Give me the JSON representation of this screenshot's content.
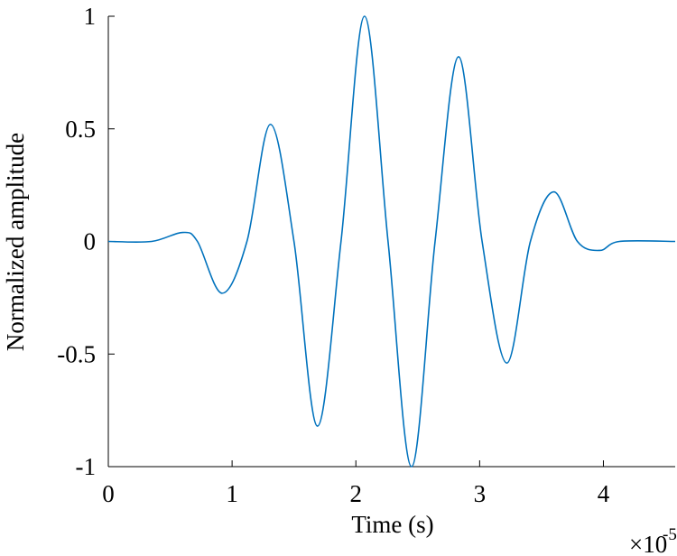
{
  "chart_data": {
    "type": "line",
    "x_label": "Time (s)",
    "y_label": "Normalized amplitude",
    "x_scale_label": {
      "base": "×10",
      "exponent": "-5"
    },
    "x": [
      0,
      0.35,
      0.6,
      0.72,
      0.92,
      1.12,
      1.31,
      1.5,
      1.69,
      1.88,
      2.07,
      2.26,
      2.45,
      2.64,
      2.83,
      3.02,
      3.22,
      3.41,
      3.6,
      3.79,
      3.97,
      4.13,
      4.58
    ],
    "series": [
      {
        "name": "Normalized amplitude",
        "color": "#0072bd",
        "values": [
          0,
          0,
          0.04,
          0,
          -0.23,
          0,
          0.52,
          0,
          -0.82,
          0,
          1.0,
          0,
          -1.0,
          0,
          0.82,
          0,
          -0.54,
          0,
          0.22,
          0,
          -0.04,
          0,
          0
        ]
      }
    ],
    "xlim": [
      0,
      4.58
    ],
    "ylim": [
      -1,
      1
    ],
    "xticks": [
      0,
      1,
      2,
      3,
      4
    ],
    "yticks": [
      -1,
      -0.5,
      0,
      0.5,
      1
    ],
    "grid": false
  }
}
